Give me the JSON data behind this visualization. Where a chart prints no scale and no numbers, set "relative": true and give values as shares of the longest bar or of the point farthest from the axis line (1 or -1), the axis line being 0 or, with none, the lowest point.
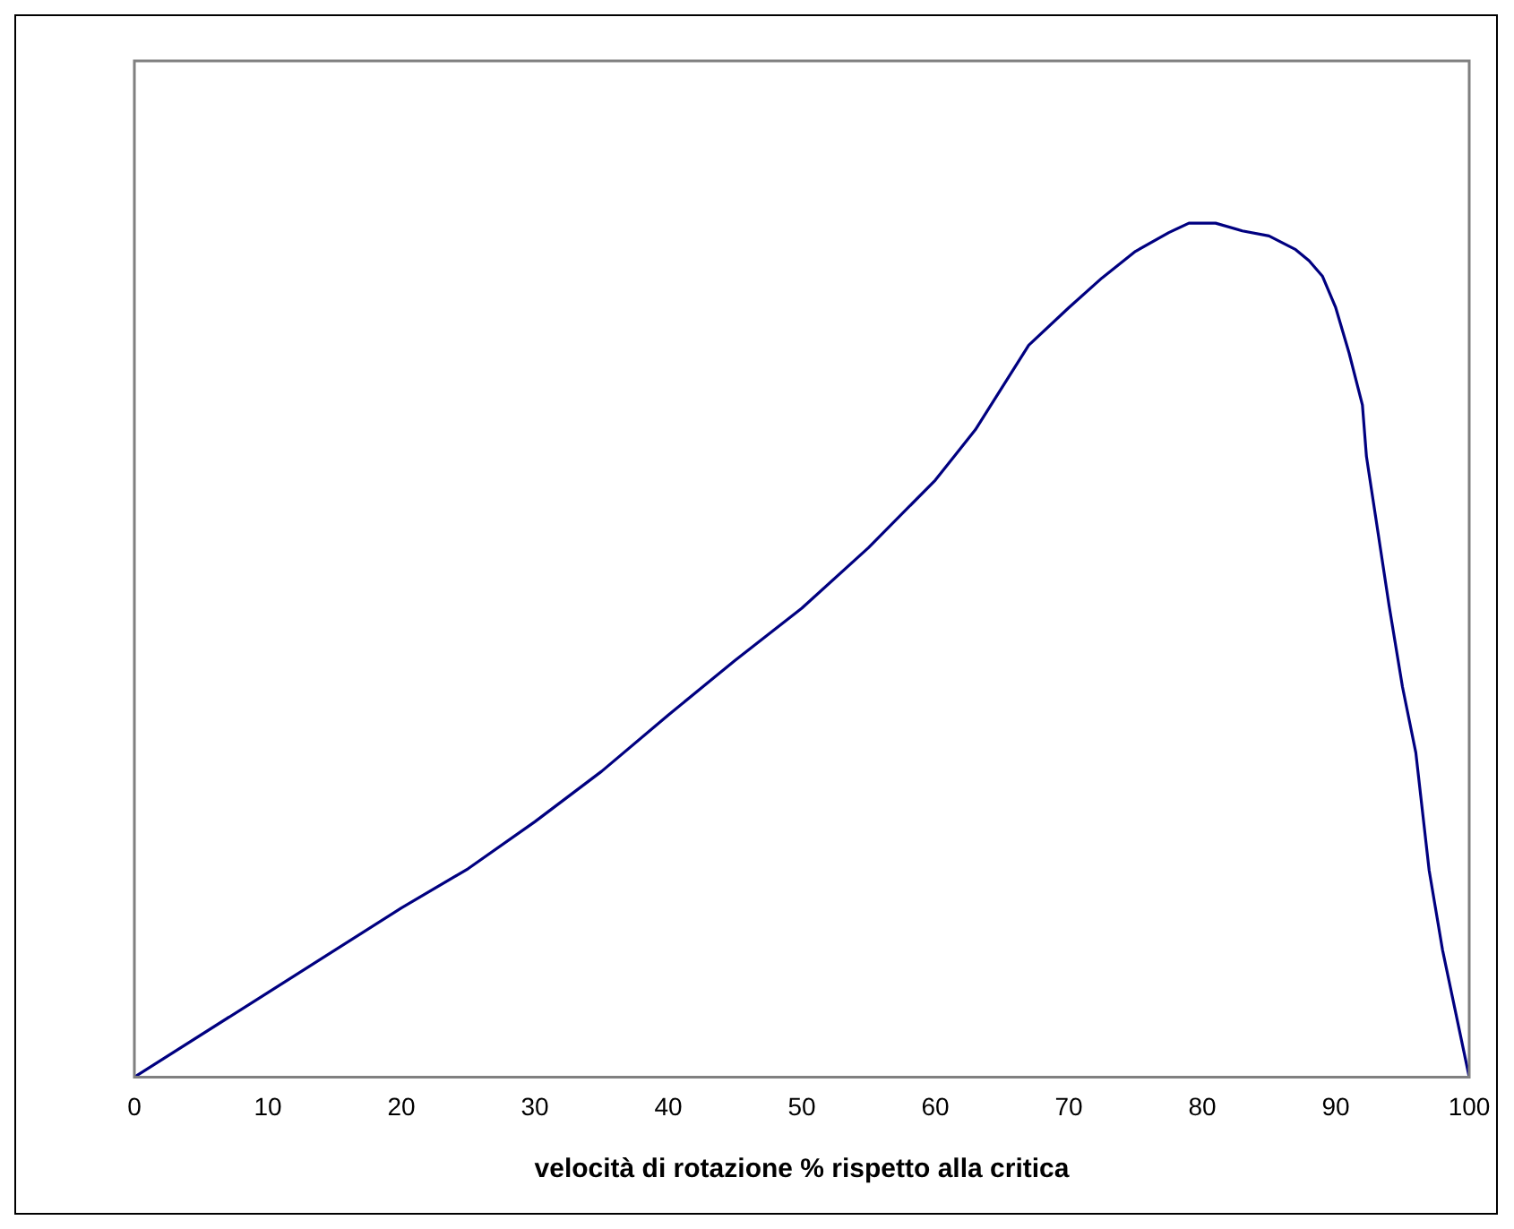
{
  "chart_data": {
    "type": "line",
    "relative": true,
    "xlabel": "velocità di rotazione % rispetto alla critica",
    "x": [
      0,
      10,
      20,
      25,
      30,
      35,
      40,
      45,
      50,
      55,
      60,
      63,
      67,
      70,
      72.5,
      75,
      77.5,
      79,
      81,
      83,
      85,
      87,
      88,
      89,
      90,
      91,
      92,
      92.3,
      93,
      94,
      95,
      96,
      97,
      98,
      100
    ],
    "series": [
      {
        "color": "#000080",
        "values": [
          0,
          0.099,
          0.198,
          0.244,
          0.299,
          0.358,
          0.424,
          0.488,
          0.549,
          0.62,
          0.699,
          0.758,
          0.857,
          0.901,
          0.936,
          0.967,
          0.989,
          1,
          1,
          0.991,
          0.985,
          0.969,
          0.956,
          0.938,
          0.901,
          0.848,
          0.787,
          0.727,
          0.655,
          0.552,
          0.457,
          0.38,
          0.242,
          0.149,
          0
        ]
      }
    ],
    "xlim": [
      0,
      100
    ],
    "xticks": [
      0,
      10,
      20,
      30,
      40,
      50,
      60,
      70,
      80,
      90,
      100
    ],
    "grid": false,
    "legend": false,
    "marker": "none",
    "line_style": "solid"
  }
}
